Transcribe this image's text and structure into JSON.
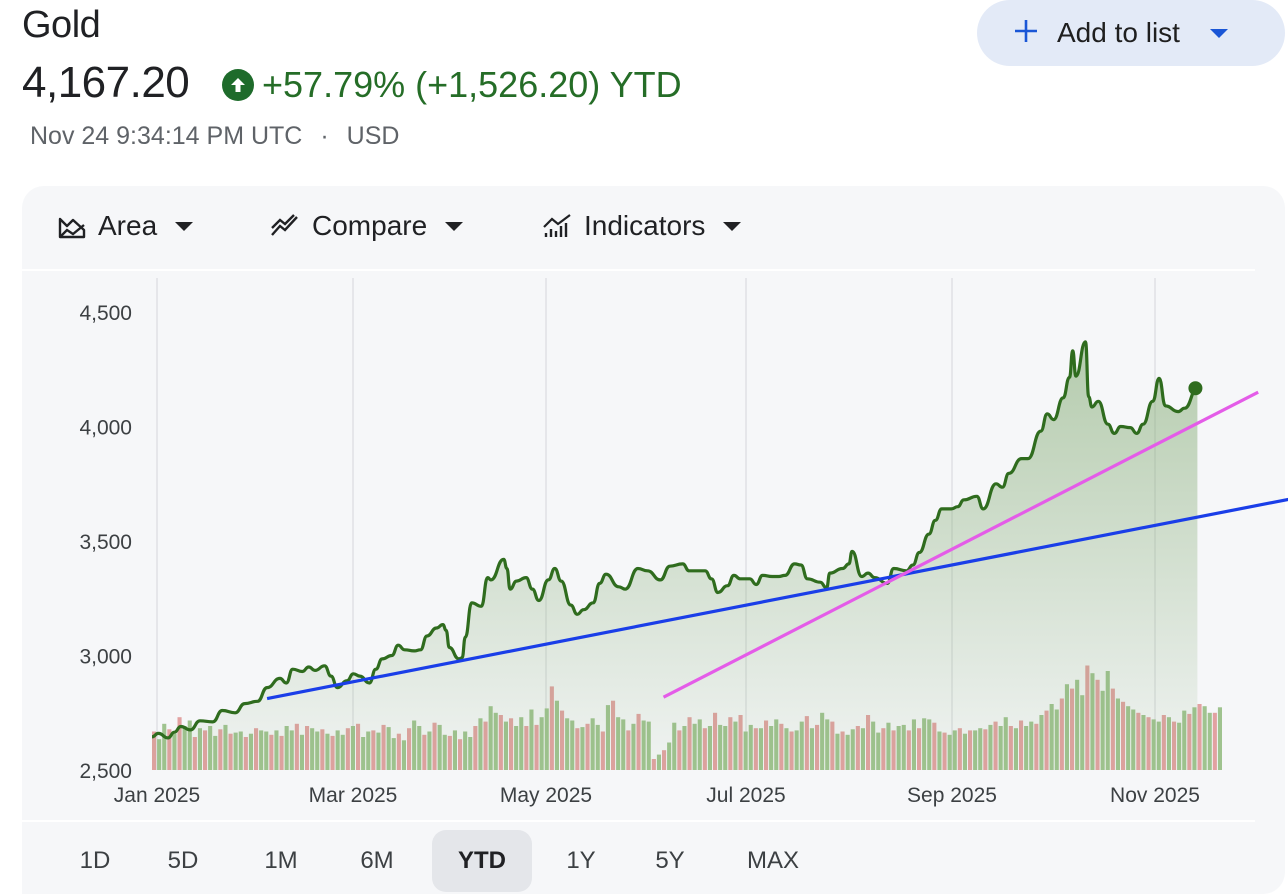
{
  "header": {
    "title": "Gold",
    "price": "4,167.20",
    "change_text": "+57.79% (+1,526.20) YTD",
    "timestamp": "Nov 24 9:34:14 PM UTC",
    "separator": "·",
    "currency": "USD",
    "add_to_list_label": "Add to list",
    "up_arrow_icon": "arrow-up-circle-icon",
    "plus_icon": "plus-icon"
  },
  "toolbar": {
    "area_label": "Area",
    "compare_label": "Compare",
    "indicators_label": "Indicators"
  },
  "periods": [
    "1D",
    "5D",
    "1M",
    "6M",
    "YTD",
    "1Y",
    "5Y",
    "MAX"
  ],
  "active_period": "YTD",
  "colors": {
    "price_line": "#2f6c1e",
    "area_fill": "#7fa86f",
    "trend_blue": "#1a3ee8",
    "trend_magenta": "#e45ce8",
    "vol_up": "#9fc38f",
    "vol_down": "#e2a1a1",
    "accent": "#1a56d6"
  },
  "chart_data": {
    "type": "area",
    "x_labels": [
      "Jan 2025",
      "Mar 2025",
      "May 2025",
      "Jul 2025",
      "Sep 2025",
      "Nov 2025"
    ],
    "y_ticks": [
      2500,
      3000,
      3500,
      4000,
      4500
    ],
    "y_tick_labels": [
      "2,500",
      "3,000",
      "3,500",
      "4,000",
      "4,500"
    ],
    "ylim": [
      2500,
      4500
    ],
    "xlim": [
      "2025-01-01",
      "2025-12-02"
    ],
    "series": [
      {
        "points": [
          [
            "2025-01-01",
            2645
          ],
          [
            "2025-01-03",
            2660
          ],
          [
            "2025-01-06",
            2640
          ],
          [
            "2025-01-08",
            2665
          ],
          [
            "2025-01-10",
            2690
          ],
          [
            "2025-01-13",
            2675
          ],
          [
            "2025-01-16",
            2715
          ],
          [
            "2025-01-20",
            2710
          ],
          [
            "2025-01-23",
            2760
          ],
          [
            "2025-01-27",
            2750
          ],
          [
            "2025-01-30",
            2790
          ],
          [
            "2025-02-03",
            2800
          ],
          [
            "2025-02-06",
            2860
          ],
          [
            "2025-02-10",
            2900
          ],
          [
            "2025-02-12",
            2880
          ],
          [
            "2025-02-14",
            2940
          ],
          [
            "2025-02-17",
            2930
          ],
          [
            "2025-02-19",
            2950
          ],
          [
            "2025-02-21",
            2935
          ],
          [
            "2025-02-24",
            2955
          ],
          [
            "2025-02-26",
            2910
          ],
          [
            "2025-02-28",
            2860
          ],
          [
            "2025-03-03",
            2890
          ],
          [
            "2025-03-05",
            2920
          ],
          [
            "2025-03-07",
            2910
          ],
          [
            "2025-03-10",
            2880
          ],
          [
            "2025-03-12",
            2940
          ],
          [
            "2025-03-14",
            2985
          ],
          [
            "2025-03-17",
            3000
          ],
          [
            "2025-03-19",
            3045
          ],
          [
            "2025-03-21",
            3025
          ],
          [
            "2025-03-24",
            3020
          ],
          [
            "2025-03-26",
            3025
          ],
          [
            "2025-03-28",
            3085
          ],
          [
            "2025-03-31",
            3120
          ],
          [
            "2025-04-02",
            3135
          ],
          [
            "2025-04-03",
            3110
          ],
          [
            "2025-04-04",
            3035
          ],
          [
            "2025-04-07",
            2985
          ],
          [
            "2025-04-08",
            2990
          ],
          [
            "2025-04-09",
            3080
          ],
          [
            "2025-04-11",
            3230
          ],
          [
            "2025-04-14",
            3215
          ],
          [
            "2025-04-16",
            3340
          ],
          [
            "2025-04-17",
            3330
          ],
          [
            "2025-04-21",
            3420
          ],
          [
            "2025-04-22",
            3380
          ],
          [
            "2025-04-23",
            3290
          ],
          [
            "2025-04-25",
            3325
          ],
          [
            "2025-04-28",
            3340
          ],
          [
            "2025-04-30",
            3290
          ],
          [
            "2025-05-02",
            3240
          ],
          [
            "2025-05-05",
            3330
          ],
          [
            "2025-05-07",
            3380
          ],
          [
            "2025-05-09",
            3325
          ],
          [
            "2025-05-12",
            3220
          ],
          [
            "2025-05-14",
            3180
          ],
          [
            "2025-05-16",
            3200
          ],
          [
            "2025-05-19",
            3230
          ],
          [
            "2025-05-21",
            3315
          ],
          [
            "2025-05-23",
            3355
          ],
          [
            "2025-05-27",
            3300
          ],
          [
            "2025-05-29",
            3290
          ],
          [
            "2025-06-02",
            3380
          ],
          [
            "2025-06-05",
            3370
          ],
          [
            "2025-06-09",
            3330
          ],
          [
            "2025-06-12",
            3390
          ],
          [
            "2025-06-16",
            3400
          ],
          [
            "2025-06-18",
            3370
          ],
          [
            "2025-06-20",
            3370
          ],
          [
            "2025-06-23",
            3370
          ],
          [
            "2025-06-25",
            3335
          ],
          [
            "2025-06-27",
            3275
          ],
          [
            "2025-06-30",
            3305
          ],
          [
            "2025-07-02",
            3350
          ],
          [
            "2025-07-04",
            3335
          ],
          [
            "2025-07-07",
            3335
          ],
          [
            "2025-07-09",
            3310
          ],
          [
            "2025-07-11",
            3350
          ],
          [
            "2025-07-14",
            3345
          ],
          [
            "2025-07-16",
            3345
          ],
          [
            "2025-07-18",
            3350
          ],
          [
            "2025-07-21",
            3400
          ],
          [
            "2025-07-23",
            3395
          ],
          [
            "2025-07-25",
            3335
          ],
          [
            "2025-07-29",
            3320
          ],
          [
            "2025-07-31",
            3295
          ],
          [
            "2025-08-01",
            3360
          ],
          [
            "2025-08-05",
            3380
          ],
          [
            "2025-08-07",
            3400
          ],
          [
            "2025-08-08",
            3455
          ],
          [
            "2025-08-11",
            3345
          ],
          [
            "2025-08-13",
            3360
          ],
          [
            "2025-08-15",
            3340
          ],
          [
            "2025-08-19",
            3315
          ],
          [
            "2025-08-21",
            3380
          ],
          [
            "2025-08-25",
            3370
          ],
          [
            "2025-08-27",
            3395
          ],
          [
            "2025-08-29",
            3450
          ],
          [
            "2025-09-01",
            3530
          ],
          [
            "2025-09-03",
            3590
          ],
          [
            "2025-09-05",
            3640
          ],
          [
            "2025-09-08",
            3640
          ],
          [
            "2025-09-10",
            3650
          ],
          [
            "2025-09-12",
            3680
          ],
          [
            "2025-09-16",
            3695
          ],
          [
            "2025-09-18",
            3640
          ],
          [
            "2025-09-22",
            3750
          ],
          [
            "2025-09-24",
            3735
          ],
          [
            "2025-09-26",
            3795
          ],
          [
            "2025-09-30",
            3860
          ],
          [
            "2025-10-02",
            3860
          ],
          [
            "2025-10-06",
            3980
          ],
          [
            "2025-10-08",
            4055
          ],
          [
            "2025-10-10",
            4030
          ],
          [
            "2025-10-13",
            4125
          ],
          [
            "2025-10-15",
            4215
          ],
          [
            "2025-10-16",
            4330
          ],
          [
            "2025-10-17",
            4220
          ],
          [
            "2025-10-20",
            4370
          ],
          [
            "2025-10-21",
            4130
          ],
          [
            "2025-10-22",
            4085
          ],
          [
            "2025-10-24",
            4110
          ],
          [
            "2025-10-27",
            4010
          ],
          [
            "2025-10-29",
            3970
          ],
          [
            "2025-10-31",
            4000
          ],
          [
            "2025-11-03",
            3995
          ],
          [
            "2025-11-05",
            3970
          ],
          [
            "2025-11-07",
            4010
          ],
          [
            "2025-11-10",
            4110
          ],
          [
            "2025-11-12",
            4210
          ],
          [
            "2025-11-14",
            4090
          ],
          [
            "2025-11-18",
            4065
          ],
          [
            "2025-11-20",
            4080
          ],
          [
            "2025-11-24",
            4167
          ]
        ]
      }
    ],
    "trendlines": [
      {
        "color": "blue",
        "from": [
          "2025-02-06",
          2812
        ],
        "to": [
          "2025-12-31",
          3705
        ]
      },
      {
        "color": "magenta",
        "from": [
          "2025-06-10",
          2818
        ],
        "to": [
          "2025-12-13",
          4150
        ]
      }
    ],
    "volume": {
      "ymax": 100,
      "bars": [
        35,
        28,
        42,
        37,
        33,
        48,
        40,
        45,
        30,
        38,
        36,
        40,
        31,
        37,
        41,
        33,
        34,
        35,
        30,
        33,
        38,
        36,
        35,
        32,
        36,
        31,
        40,
        36,
        42,
        32,
        40,
        38,
        35,
        37,
        33,
        31,
        36,
        32,
        38,
        40,
        42,
        30,
        35,
        36,
        34,
        41,
        39,
        29,
        33,
        27,
        38,
        45,
        40,
        32,
        35,
        43,
        41,
        32,
        31,
        36,
        28,
        35,
        30,
        40,
        47,
        44,
        58,
        52,
        50,
        44,
        47,
        40,
        48,
        40,
        55,
        41,
        48,
        56,
        76,
        63,
        54,
        47,
        45,
        38,
        39,
        42,
        47,
        41,
        35,
        59,
        63,
        48,
        46,
        36,
        42,
        51,
        45,
        44,
        10,
        14,
        18,
        25,
        43,
        36,
        40,
        48,
        42,
        46,
        38,
        40,
        52,
        41,
        40,
        48,
        44,
        50,
        35,
        41,
        38,
        38,
        45,
        40,
        46,
        42,
        38,
        35,
        36,
        44,
        49,
        38,
        41,
        52,
        46,
        44,
        33,
        35,
        32,
        37,
        40,
        38,
        50,
        44,
        34,
        38,
        43,
        36,
        40,
        41,
        36,
        46,
        38,
        47,
        46,
        43,
        35,
        34,
        32,
        36,
        38,
        33,
        36,
        36,
        38,
        37,
        41,
        44,
        40,
        48,
        40,
        38,
        45,
        40,
        44,
        42,
        50,
        54,
        60,
        55,
        65,
        78,
        74,
        82,
        68,
        95,
        88,
        82,
        72,
        90,
        74,
        65,
        62,
        58,
        55,
        52,
        50,
        48,
        46,
        44,
        50,
        48,
        44,
        43,
        54,
        51,
        57,
        60,
        58,
        52,
        52,
        57
      ]
    }
  }
}
